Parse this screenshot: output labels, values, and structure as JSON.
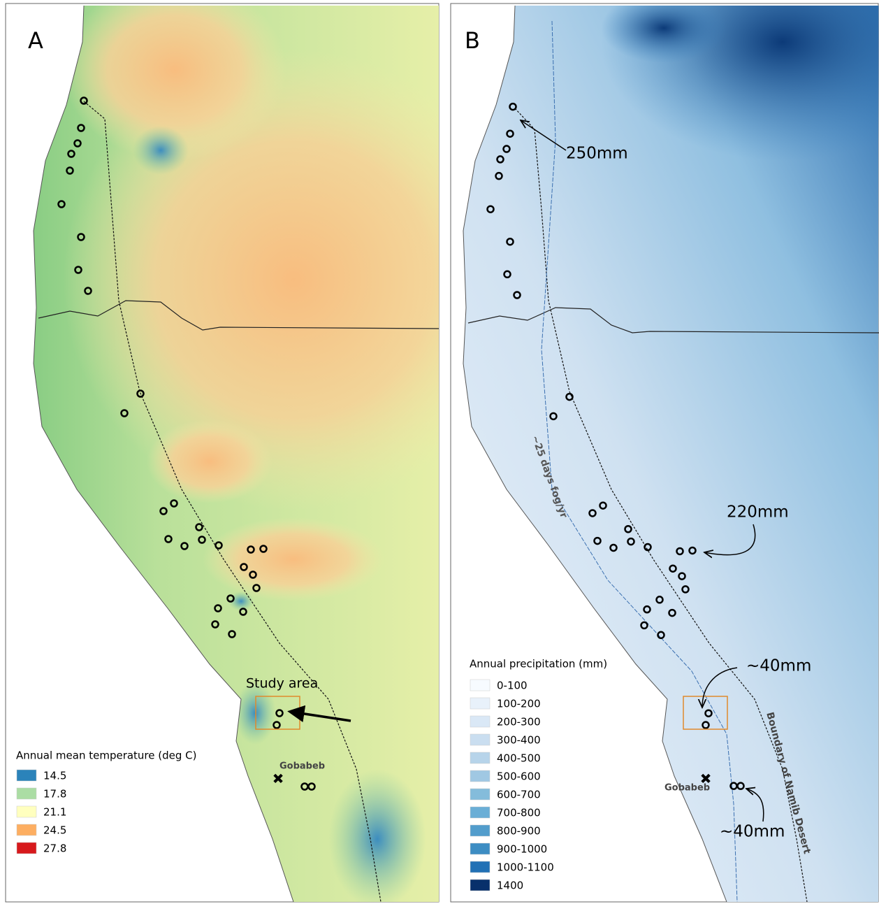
{
  "panels": [
    {
      "label": "A",
      "annotations": {
        "study_area": "Study area",
        "gobabeb": "Gobabeb"
      },
      "legend": {
        "title": "Annual mean temperature (deg C)",
        "items": [
          {
            "label": "14.5",
            "color": "#2b83ba"
          },
          {
            "label": "17.8",
            "color": "#abdda4"
          },
          {
            "label": "21.1",
            "color": "#ffffbf"
          },
          {
            "label": "24.5",
            "color": "#fdae61"
          },
          {
            "label": "27.8",
            "color": "#d7191c"
          }
        ]
      }
    },
    {
      "label": "B",
      "annotations": {
        "north_rain": "250mm",
        "mid_rain": "220mm",
        "study_rain": "~40mm",
        "gobabeb_rain": "~40mm",
        "fog_line": "~25 days fog/yr",
        "boundary": "Boundary of Namib Desert",
        "gobabeb": "Gobabeb"
      },
      "legend": {
        "title": "Annual precipitation (mm)",
        "items": [
          {
            "label": "0-100",
            "color": "#f7fbff"
          },
          {
            "label": "100-200",
            "color": "#e8f1fa"
          },
          {
            "label": "200-300",
            "color": "#dae8f6"
          },
          {
            "label": "300-400",
            "color": "#cadef0"
          },
          {
            "label": "400-500",
            "color": "#b7d4ea"
          },
          {
            "label": "500-600",
            "color": "#a0c8e3"
          },
          {
            "label": "600-700",
            "color": "#84bcdb"
          },
          {
            "label": "700-800",
            "color": "#6aaed6"
          },
          {
            "label": "800-900",
            "color": "#529dcc"
          },
          {
            "label": "900-1000",
            "color": "#3d8dc3"
          },
          {
            "label": "1000-1100",
            "color": "#2171b5"
          },
          {
            "label": "1400",
            "color": "#08306b"
          }
        ]
      }
    }
  ]
}
